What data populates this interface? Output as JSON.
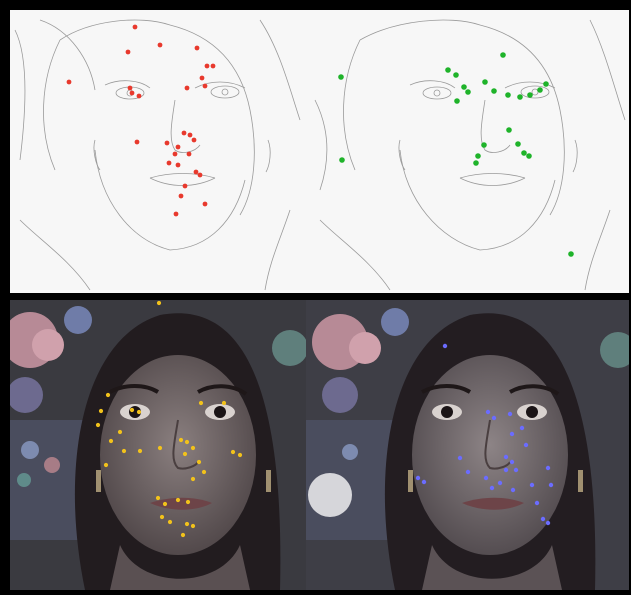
{
  "figure": {
    "background_color": "#000000",
    "frame_color": "#0a0a0a"
  },
  "panels": {
    "top_left": {
      "kind": "edge-map",
      "background_color": "#f7f7f7",
      "line_color": "#9a9a9a",
      "marker_color": "#e8392d"
    },
    "top_right": {
      "kind": "edge-map",
      "background_color": "#f7f7f7",
      "line_color": "#9a9a9a",
      "marker_color": "#1fb32a"
    },
    "bottom_left": {
      "kind": "photo",
      "background_color": "#3a3a40",
      "marker_color": "#f2c21b"
    },
    "bottom_right": {
      "kind": "photo",
      "background_color": "#3e3e46",
      "marker_color": "#6b6cff"
    }
  }
}
